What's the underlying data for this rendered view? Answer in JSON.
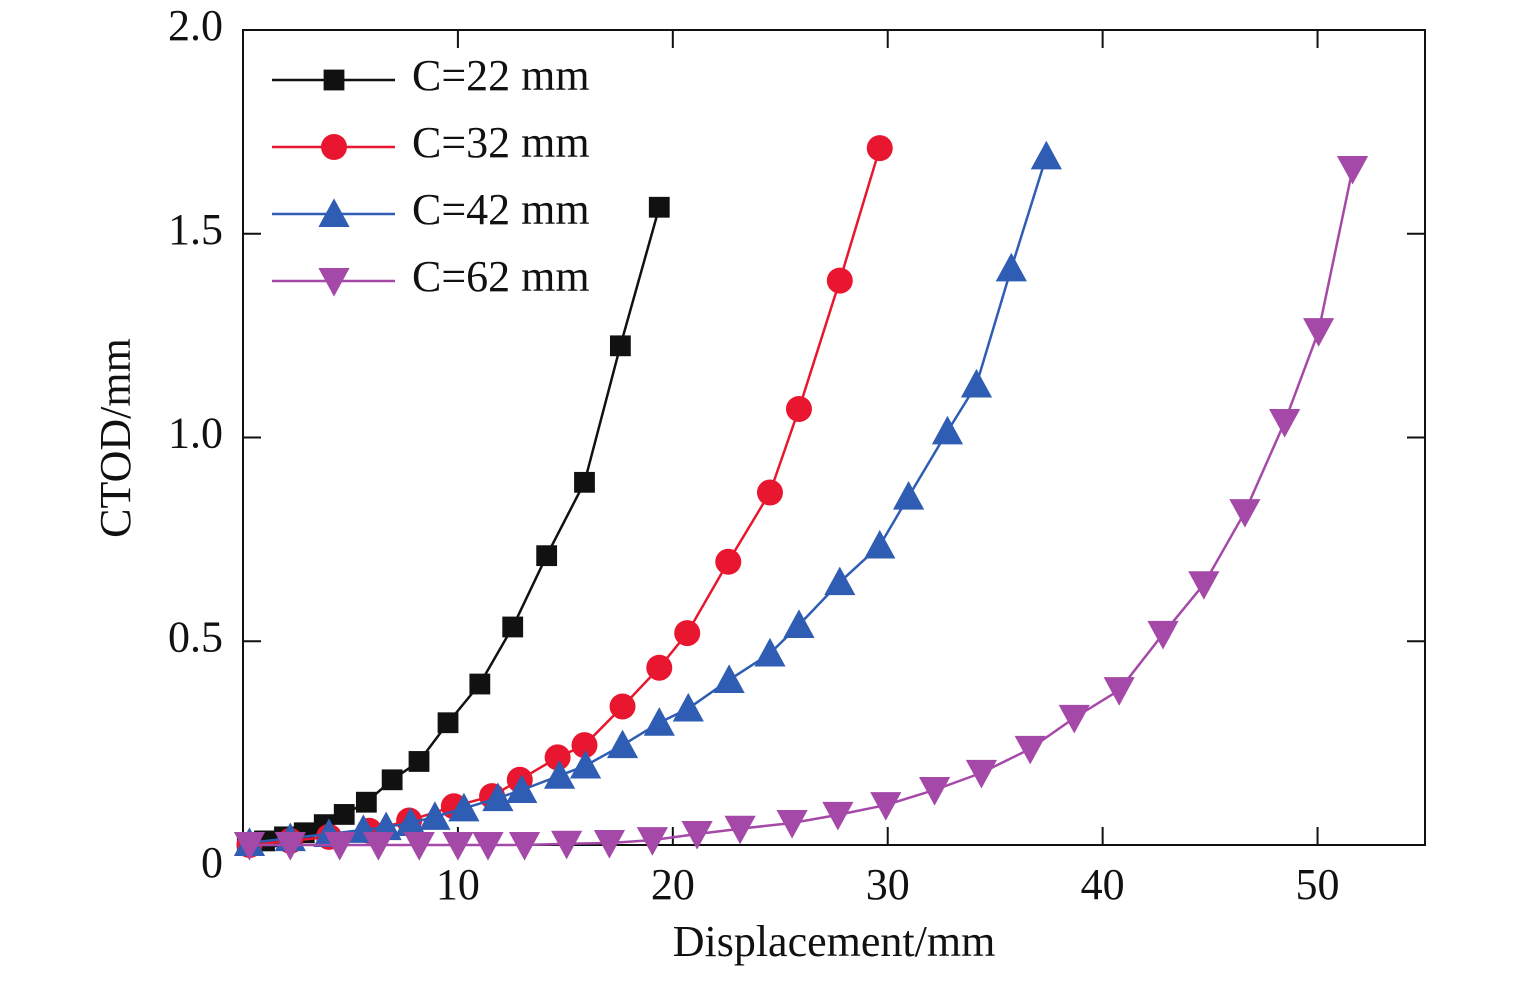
{
  "chart_data": {
    "type": "line",
    "x_label": "Displacement/mm",
    "y_label": "CTOD/mm",
    "xlim": [
      0,
      55
    ],
    "xticks": [
      10,
      20,
      30,
      40,
      50
    ],
    "ylim": [
      0,
      2
    ],
    "yticks": [
      0,
      0.5,
      {
        "value": 1,
        "label": "1.0"
      },
      1.5,
      {
        "value": 2,
        "label": "2.0"
      }
    ],
    "legend": "upper left",
    "series": [
      {
        "name": "C=22 mm",
        "color": "#111111",
        "marker": "square",
        "x": [
          0.2,
          1.0,
          1.93,
          2.85,
          3.78,
          4.71,
          5.74,
          6.94,
          8.19,
          9.54,
          11.02,
          12.55,
          14.13,
          15.89,
          17.56,
          19.37
        ],
        "values": [
          0.005,
          0.01,
          0.02,
          0.03,
          0.05,
          0.075,
          0.105,
          0.16,
          0.205,
          0.3,
          0.395,
          0.535,
          0.71,
          0.89,
          1.225,
          1.565
        ]
      },
      {
        "name": "C=32 mm",
        "color": "#e8162e",
        "marker": "circle",
        "x": [
          0.3,
          2.2,
          4.0,
          5.87,
          7.73,
          9.81,
          11.59,
          12.88,
          14.64,
          15.89,
          17.66,
          19.37,
          20.67,
          22.58,
          24.52,
          25.87,
          27.77,
          29.63
        ],
        "values": [
          0,
          0.01,
          0.02,
          0.035,
          0.06,
          0.095,
          0.12,
          0.16,
          0.215,
          0.245,
          0.34,
          0.435,
          0.52,
          0.695,
          0.865,
          1.07,
          1.385,
          1.71
        ]
      },
      {
        "name": "C=42 mm",
        "color": "#2f5db3",
        "marker": "triangle-up",
        "x": [
          0.3,
          2.2,
          4.0,
          5.6,
          6.66,
          7.8,
          8.93,
          10.28,
          11.86,
          12.97,
          14.73,
          15.94,
          17.66,
          19.37,
          20.72,
          22.62,
          24.52,
          25.87,
          27.77,
          29.63,
          30.97,
          32.78,
          34.13,
          35.75,
          37.38
        ],
        "values": [
          0.005,
          0.017,
          0.027,
          0.037,
          0.044,
          0.054,
          0.069,
          0.09,
          0.115,
          0.135,
          0.17,
          0.195,
          0.245,
          0.3,
          0.335,
          0.405,
          0.47,
          0.54,
          0.645,
          0.735,
          0.855,
          1.015,
          1.13,
          1.415,
          1.69
        ]
      },
      {
        "name": "C=62 mm",
        "color": "#a549a8",
        "marker": "triangle-down",
        "x": [
          0.3,
          2.2,
          4.5,
          6.3,
          8.2,
          10,
          11.4,
          13.1,
          15.06,
          17.05,
          19.05,
          21.13,
          23.13,
          25.55,
          27.68,
          29.91,
          32.18,
          34.36,
          36.63,
          38.68,
          40.77,
          42.81,
          44.71,
          46.62,
          48.47,
          50.05,
          51.63
        ],
        "values": [
          0,
          0,
          0,
          0,
          0,
          0,
          0,
          0,
          0.003,
          0.005,
          0.012,
          0.027,
          0.04,
          0.054,
          0.074,
          0.098,
          0.135,
          0.177,
          0.236,
          0.312,
          0.38,
          0.518,
          0.64,
          0.817,
          1.038,
          1.261,
          1.659
        ]
      }
    ]
  }
}
